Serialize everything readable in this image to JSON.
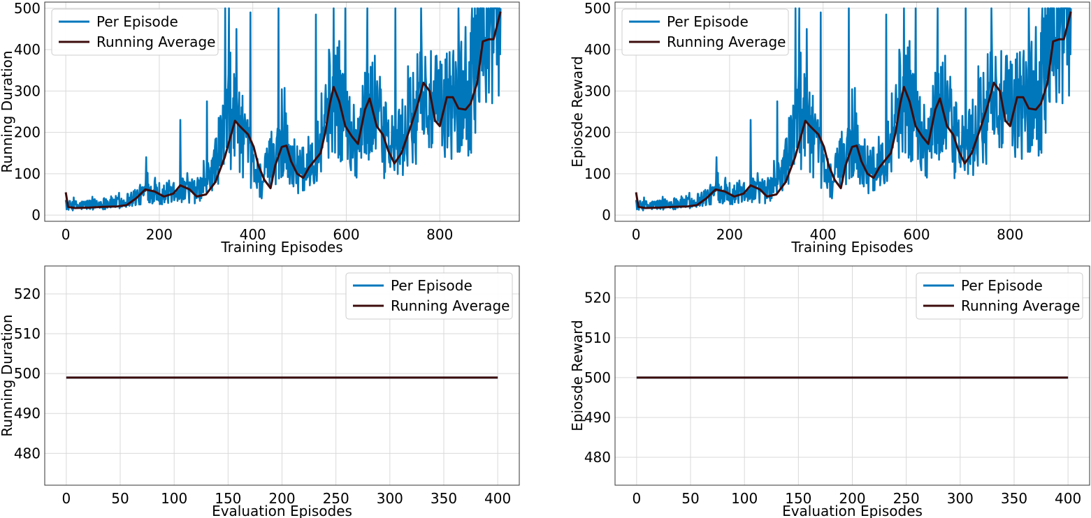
{
  "chart_data": [
    {
      "type": "line",
      "xlabel": "Training Episodes",
      "ylabel": "Running Duration",
      "xlim": [
        -45,
        970
      ],
      "ylim": [
        -15,
        515
      ],
      "xticks": [
        0,
        200,
        400,
        600,
        800
      ],
      "yticks": [
        0,
        100,
        200,
        300,
        400,
        500
      ],
      "grid": true,
      "legend_position": "top-left",
      "x_count": 931,
      "per_episode_envelope": [
        [
          0,
          22
        ],
        [
          30,
          22
        ],
        [
          60,
          25
        ],
        [
          90,
          28
        ],
        [
          120,
          30
        ],
        [
          150,
          42
        ],
        [
          180,
          55
        ],
        [
          210,
          48
        ],
        [
          240,
          60
        ],
        [
          260,
          55
        ],
        [
          280,
          55
        ],
        [
          300,
          72
        ],
        [
          320,
          120
        ],
        [
          340,
          200
        ],
        [
          360,
          230
        ],
        [
          380,
          175
        ],
        [
          400,
          110
        ],
        [
          420,
          75
        ],
        [
          440,
          130
        ],
        [
          460,
          160
        ],
        [
          480,
          135
        ],
        [
          500,
          95
        ],
        [
          520,
          120
        ],
        [
          540,
          165
        ],
        [
          560,
          250
        ],
        [
          580,
          280
        ],
        [
          600,
          210
        ],
        [
          620,
          170
        ],
        [
          640,
          220
        ],
        [
          660,
          260
        ],
        [
          680,
          175
        ],
        [
          700,
          155
        ],
        [
          720,
          175
        ],
        [
          740,
          215
        ],
        [
          760,
          280
        ],
        [
          780,
          250
        ],
        [
          800,
          235
        ],
        [
          820,
          260
        ],
        [
          840,
          265
        ],
        [
          860,
          270
        ],
        [
          880,
          330
        ],
        [
          900,
          420
        ],
        [
          930,
          490
        ]
      ],
      "per_episode_spikes": [
        [
          172,
          140
        ],
        [
          245,
          230
        ],
        [
          302,
          275
        ],
        [
          341,
          500
        ],
        [
          349,
          500
        ],
        [
          365,
          450
        ],
        [
          395,
          490
        ],
        [
          455,
          500
        ],
        [
          535,
          485
        ],
        [
          573,
          500
        ],
        [
          598,
          500
        ],
        [
          645,
          500
        ],
        [
          705,
          500
        ],
        [
          760,
          500
        ],
        [
          840,
          500
        ],
        [
          855,
          455
        ],
        [
          875,
          500
        ],
        [
          900,
          500
        ],
        [
          920,
          500
        ]
      ],
      "running_average": [
        [
          0,
          55
        ],
        [
          5,
          20
        ],
        [
          20,
          17
        ],
        [
          50,
          18
        ],
        [
          80,
          20
        ],
        [
          110,
          21
        ],
        [
          130,
          24
        ],
        [
          150,
          40
        ],
        [
          170,
          62
        ],
        [
          190,
          57
        ],
        [
          210,
          45
        ],
        [
          230,
          52
        ],
        [
          245,
          72
        ],
        [
          265,
          62
        ],
        [
          280,
          45
        ],
        [
          300,
          50
        ],
        [
          320,
          80
        ],
        [
          340,
          140
        ],
        [
          350,
          180
        ],
        [
          362,
          228
        ],
        [
          372,
          215
        ],
        [
          390,
          195
        ],
        [
          402,
          165
        ],
        [
          412,
          120
        ],
        [
          425,
          85
        ],
        [
          438,
          65
        ],
        [
          448,
          120
        ],
        [
          462,
          165
        ],
        [
          472,
          168
        ],
        [
          482,
          130
        ],
        [
          495,
          100
        ],
        [
          508,
          90
        ],
        [
          520,
          115
        ],
        [
          545,
          150
        ],
        [
          555,
          200
        ],
        [
          565,
          270
        ],
        [
          573,
          310
        ],
        [
          585,
          275
        ],
        [
          598,
          215
        ],
        [
          612,
          190
        ],
        [
          625,
          172
        ],
        [
          640,
          255
        ],
        [
          650,
          282
        ],
        [
          665,
          215
        ],
        [
          678,
          195
        ],
        [
          690,
          155
        ],
        [
          703,
          125
        ],
        [
          718,
          150
        ],
        [
          738,
          215
        ],
        [
          752,
          265
        ],
        [
          765,
          320
        ],
        [
          778,
          300
        ],
        [
          790,
          228
        ],
        [
          800,
          215
        ],
        [
          815,
          285
        ],
        [
          828,
          285
        ],
        [
          840,
          258
        ],
        [
          855,
          255
        ],
        [
          866,
          270
        ],
        [
          880,
          320
        ],
        [
          892,
          420
        ],
        [
          905,
          425
        ],
        [
          915,
          425
        ],
        [
          930,
          492
        ]
      ],
      "series": [
        {
          "name": "Per Episode",
          "color": "#0077bb"
        },
        {
          "name": "Running Average",
          "color": "#3d0c0c"
        }
      ]
    },
    {
      "type": "line",
      "xlabel": "Training Episodes",
      "ylabel": "Epiosde Reward",
      "xlim": [
        -45,
        970
      ],
      "ylim": [
        -15,
        515
      ],
      "xticks": [
        0,
        200,
        400,
        600,
        800
      ],
      "yticks": [
        0,
        100,
        200,
        300,
        400,
        500
      ],
      "grid": true,
      "legend_position": "top-left",
      "x_count": 931,
      "per_episode_envelope": [
        [
          0,
          22
        ],
        [
          30,
          22
        ],
        [
          60,
          25
        ],
        [
          90,
          28
        ],
        [
          120,
          30
        ],
        [
          150,
          42
        ],
        [
          180,
          55
        ],
        [
          210,
          48
        ],
        [
          240,
          60
        ],
        [
          260,
          55
        ],
        [
          280,
          55
        ],
        [
          300,
          72
        ],
        [
          320,
          120
        ],
        [
          340,
          200
        ],
        [
          360,
          230
        ],
        [
          380,
          175
        ],
        [
          400,
          110
        ],
        [
          420,
          75
        ],
        [
          440,
          130
        ],
        [
          460,
          160
        ],
        [
          480,
          135
        ],
        [
          500,
          95
        ],
        [
          520,
          120
        ],
        [
          540,
          165
        ],
        [
          560,
          250
        ],
        [
          580,
          280
        ],
        [
          600,
          210
        ],
        [
          620,
          170
        ],
        [
          640,
          220
        ],
        [
          660,
          260
        ],
        [
          680,
          175
        ],
        [
          700,
          155
        ],
        [
          720,
          175
        ],
        [
          740,
          215
        ],
        [
          760,
          280
        ],
        [
          780,
          250
        ],
        [
          800,
          235
        ],
        [
          820,
          260
        ],
        [
          840,
          265
        ],
        [
          860,
          270
        ],
        [
          880,
          330
        ],
        [
          900,
          420
        ],
        [
          930,
          490
        ]
      ],
      "per_episode_spikes": [
        [
          172,
          140
        ],
        [
          245,
          230
        ],
        [
          302,
          275
        ],
        [
          341,
          500
        ],
        [
          349,
          500
        ],
        [
          365,
          450
        ],
        [
          395,
          490
        ],
        [
          455,
          500
        ],
        [
          535,
          485
        ],
        [
          573,
          500
        ],
        [
          598,
          500
        ],
        [
          645,
          500
        ],
        [
          705,
          500
        ],
        [
          760,
          500
        ],
        [
          840,
          500
        ],
        [
          855,
          455
        ],
        [
          875,
          500
        ],
        [
          900,
          500
        ],
        [
          920,
          500
        ]
      ],
      "running_average": [
        [
          0,
          55
        ],
        [
          5,
          20
        ],
        [
          20,
          17
        ],
        [
          50,
          18
        ],
        [
          80,
          20
        ],
        [
          110,
          21
        ],
        [
          130,
          24
        ],
        [
          150,
          40
        ],
        [
          170,
          62
        ],
        [
          190,
          57
        ],
        [
          210,
          45
        ],
        [
          230,
          52
        ],
        [
          245,
          72
        ],
        [
          265,
          62
        ],
        [
          280,
          45
        ],
        [
          300,
          50
        ],
        [
          320,
          80
        ],
        [
          340,
          140
        ],
        [
          350,
          180
        ],
        [
          362,
          228
        ],
        [
          372,
          215
        ],
        [
          390,
          195
        ],
        [
          402,
          165
        ],
        [
          412,
          120
        ],
        [
          425,
          85
        ],
        [
          438,
          65
        ],
        [
          448,
          120
        ],
        [
          462,
          165
        ],
        [
          472,
          168
        ],
        [
          482,
          130
        ],
        [
          495,
          100
        ],
        [
          508,
          90
        ],
        [
          520,
          115
        ],
        [
          545,
          150
        ],
        [
          555,
          200
        ],
        [
          565,
          270
        ],
        [
          573,
          310
        ],
        [
          585,
          275
        ],
        [
          598,
          215
        ],
        [
          612,
          190
        ],
        [
          625,
          172
        ],
        [
          640,
          255
        ],
        [
          650,
          282
        ],
        [
          665,
          215
        ],
        [
          678,
          195
        ],
        [
          690,
          155
        ],
        [
          703,
          125
        ],
        [
          718,
          150
        ],
        [
          738,
          215
        ],
        [
          752,
          265
        ],
        [
          765,
          320
        ],
        [
          778,
          300
        ],
        [
          790,
          228
        ],
        [
          800,
          215
        ],
        [
          815,
          285
        ],
        [
          828,
          285
        ],
        [
          840,
          258
        ],
        [
          855,
          255
        ],
        [
          866,
          270
        ],
        [
          880,
          320
        ],
        [
          892,
          420
        ],
        [
          905,
          425
        ],
        [
          915,
          425
        ],
        [
          930,
          492
        ]
      ],
      "series": [
        {
          "name": "Per Episode",
          "color": "#0077bb"
        },
        {
          "name": "Running Average",
          "color": "#3d0c0c"
        }
      ]
    },
    {
      "type": "line",
      "xlabel": "Evaluation Episodes",
      "ylabel": "Running Duration",
      "xlim": [
        -20,
        420
      ],
      "ylim": [
        472,
        527
      ],
      "xticks": [
        0,
        50,
        100,
        150,
        200,
        250,
        300,
        350,
        400
      ],
      "yticks": [
        480,
        490,
        500,
        510,
        520
      ],
      "grid": true,
      "legend_position": "top-right",
      "x_range": [
        0,
        400
      ],
      "constant_value": 499,
      "series": [
        {
          "name": "Per Episode",
          "color": "#0077bb"
        },
        {
          "name": "Running Average",
          "color": "#3d0c0c"
        }
      ]
    },
    {
      "type": "line",
      "xlabel": "Evaluation Episodes",
      "ylabel": "Epiosde Reward",
      "xlim": [
        -20,
        420
      ],
      "ylim": [
        473,
        528
      ],
      "xticks": [
        0,
        50,
        100,
        150,
        200,
        250,
        300,
        350,
        400
      ],
      "yticks": [
        480,
        490,
        500,
        510,
        520
      ],
      "grid": true,
      "legend_position": "top-right",
      "x_range": [
        0,
        400
      ],
      "constant_value": 500,
      "series": [
        {
          "name": "Per Episode",
          "color": "#0077bb"
        },
        {
          "name": "Running Average",
          "color": "#3d0c0c"
        }
      ]
    }
  ]
}
